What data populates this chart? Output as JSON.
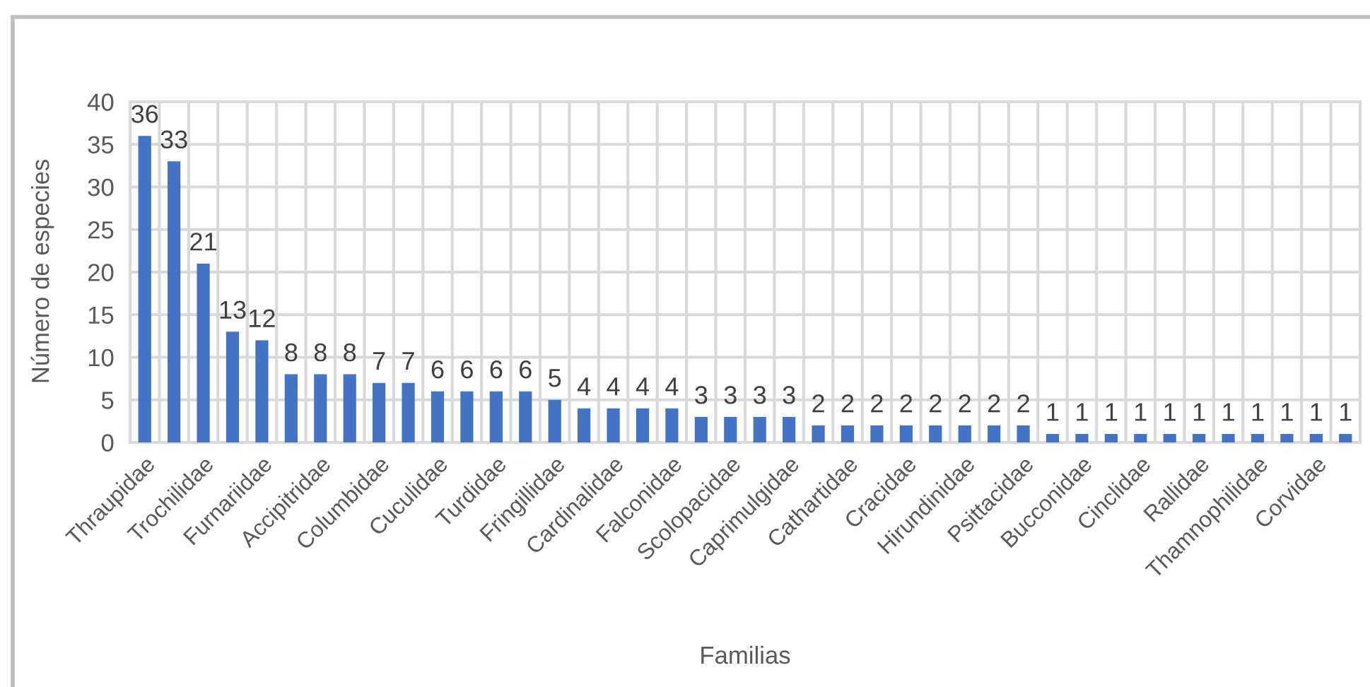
{
  "chart_data": {
    "type": "bar",
    "xlabel": "Familias",
    "ylabel": "Número de especies",
    "categories": [
      "Thraupidae",
      null,
      "Trochilidae",
      null,
      "Furnariidae",
      null,
      "Accipitridae",
      null,
      "Columbidae",
      null,
      "Cuculidae",
      null,
      "Turdidae",
      null,
      "Fringillidae",
      null,
      "Cardinalidae",
      null,
      "Falconidae",
      null,
      "Scolopacidae",
      null,
      "Caprimulgidae",
      null,
      "Cathartidae",
      null,
      "Cracidae",
      null,
      "Hirundinidae",
      null,
      "Psittacidae",
      null,
      "Bucconidae",
      null,
      "Cinclidae",
      null,
      "Rallidae",
      null,
      "Thamnophilidae",
      null,
      "Corvidae",
      null
    ],
    "values": [
      36,
      33,
      21,
      13,
      12,
      8,
      8,
      8,
      7,
      7,
      6,
      6,
      6,
      6,
      5,
      4,
      4,
      4,
      4,
      3,
      3,
      3,
      3,
      2,
      2,
      2,
      2,
      2,
      2,
      2,
      2,
      1,
      1,
      1,
      1,
      1,
      1,
      1,
      1,
      1,
      1,
      1
    ],
    "color": "#4472c4",
    "ylim": [
      0,
      40
    ],
    "yticks": [
      0,
      5,
      10,
      15,
      20,
      25,
      30,
      35,
      40
    ],
    "grid": true,
    "data_labels": true
  }
}
